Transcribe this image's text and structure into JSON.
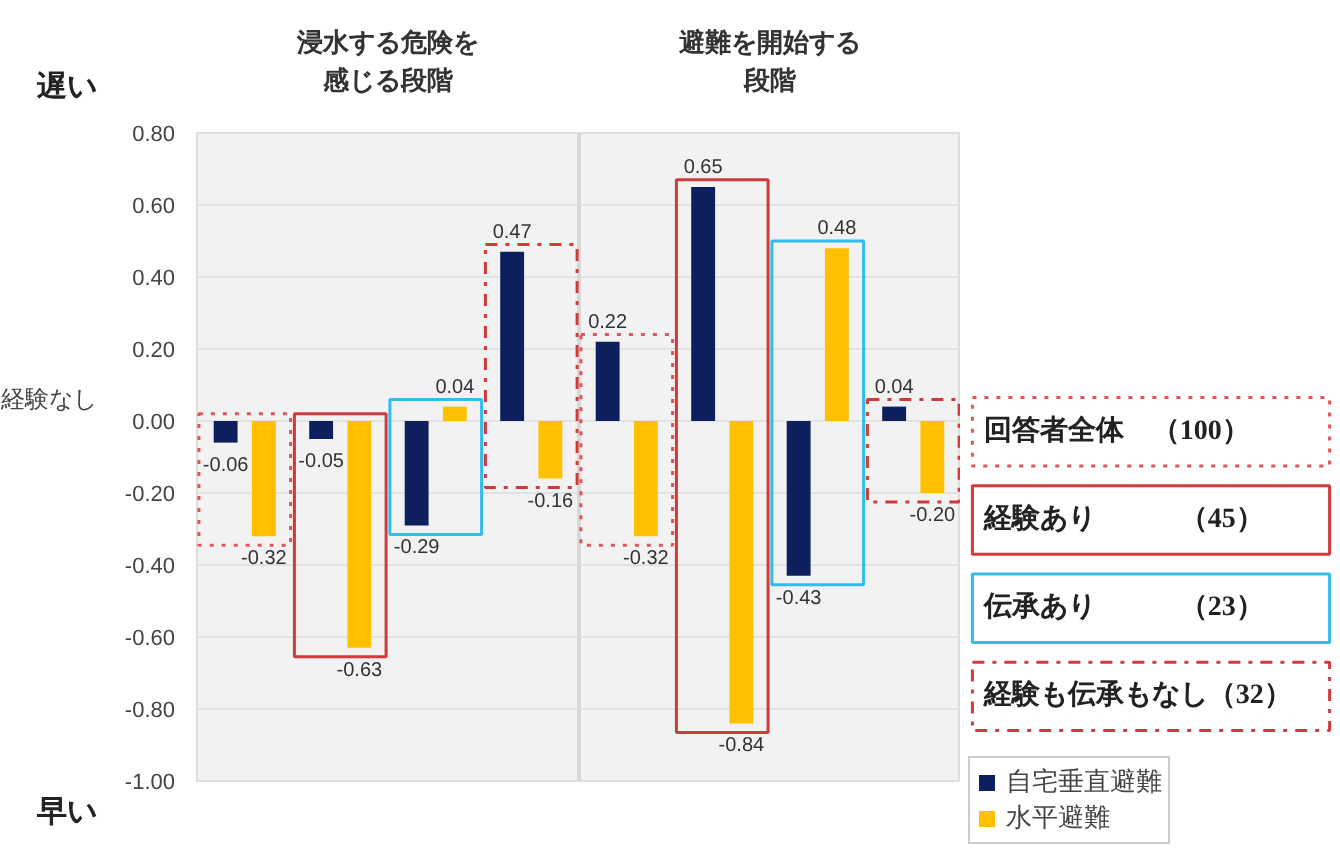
{
  "chart_data": {
    "type": "bar",
    "categories": [
      null,
      null,
      null,
      null,
      null,
      null,
      null,
      null
    ],
    "series": [
      {
        "name": "自宅垂直避難",
        "color": "#0d1f5c",
        "values": [
          -0.06,
          -0.05,
          -0.29,
          0.47,
          0.22,
          0.65,
          -0.43,
          0.04
        ],
        "value_labels": [
          "-0.06",
          "-0.05",
          "-0.29",
          "0.47",
          "0.22",
          "0.65",
          "-0.43",
          "0.04"
        ]
      },
      {
        "name": "水平避難",
        "color": "#ffc000",
        "values": [
          -0.32,
          -0.63,
          0.04,
          -0.16,
          -0.32,
          -0.84,
          0.48,
          -0.2
        ],
        "value_labels": [
          "-0.32",
          "-0.63",
          "0.04",
          "-0.16",
          "-0.32",
          "-0.84",
          "0.48",
          "-0.20"
        ]
      }
    ],
    "ylim": [
      -1.0,
      0.8
    ],
    "yticks": [
      {
        "value": 0.8,
        "label": "0.80"
      },
      {
        "value": 0.6,
        "label": "0.60"
      },
      {
        "value": 0.4,
        "label": "0.40"
      },
      {
        "value": 0.2,
        "label": "0.20"
      },
      {
        "value": 0,
        "label": "0.00"
      },
      {
        "value": -0.2,
        "label": "-0.20"
      },
      {
        "value": -0.4,
        "label": "-0.40"
      },
      {
        "value": -0.6,
        "label": "-0.60"
      },
      {
        "value": -0.8,
        "label": "-0.80"
      },
      {
        "value": -1.0,
        "label": "-1.00"
      }
    ],
    "grid": "y",
    "legend": "bottom right",
    "annotations": [
      "浸水する危険を感じる段階",
      "避難を開始する段階",
      "遅い",
      "早い",
      "経験なし",
      "回答者全体　（100）",
      "経験あり　　　（45）",
      "伝承あり　　　（23）",
      "経験も伝承もなし（32）"
    ]
  }
}
